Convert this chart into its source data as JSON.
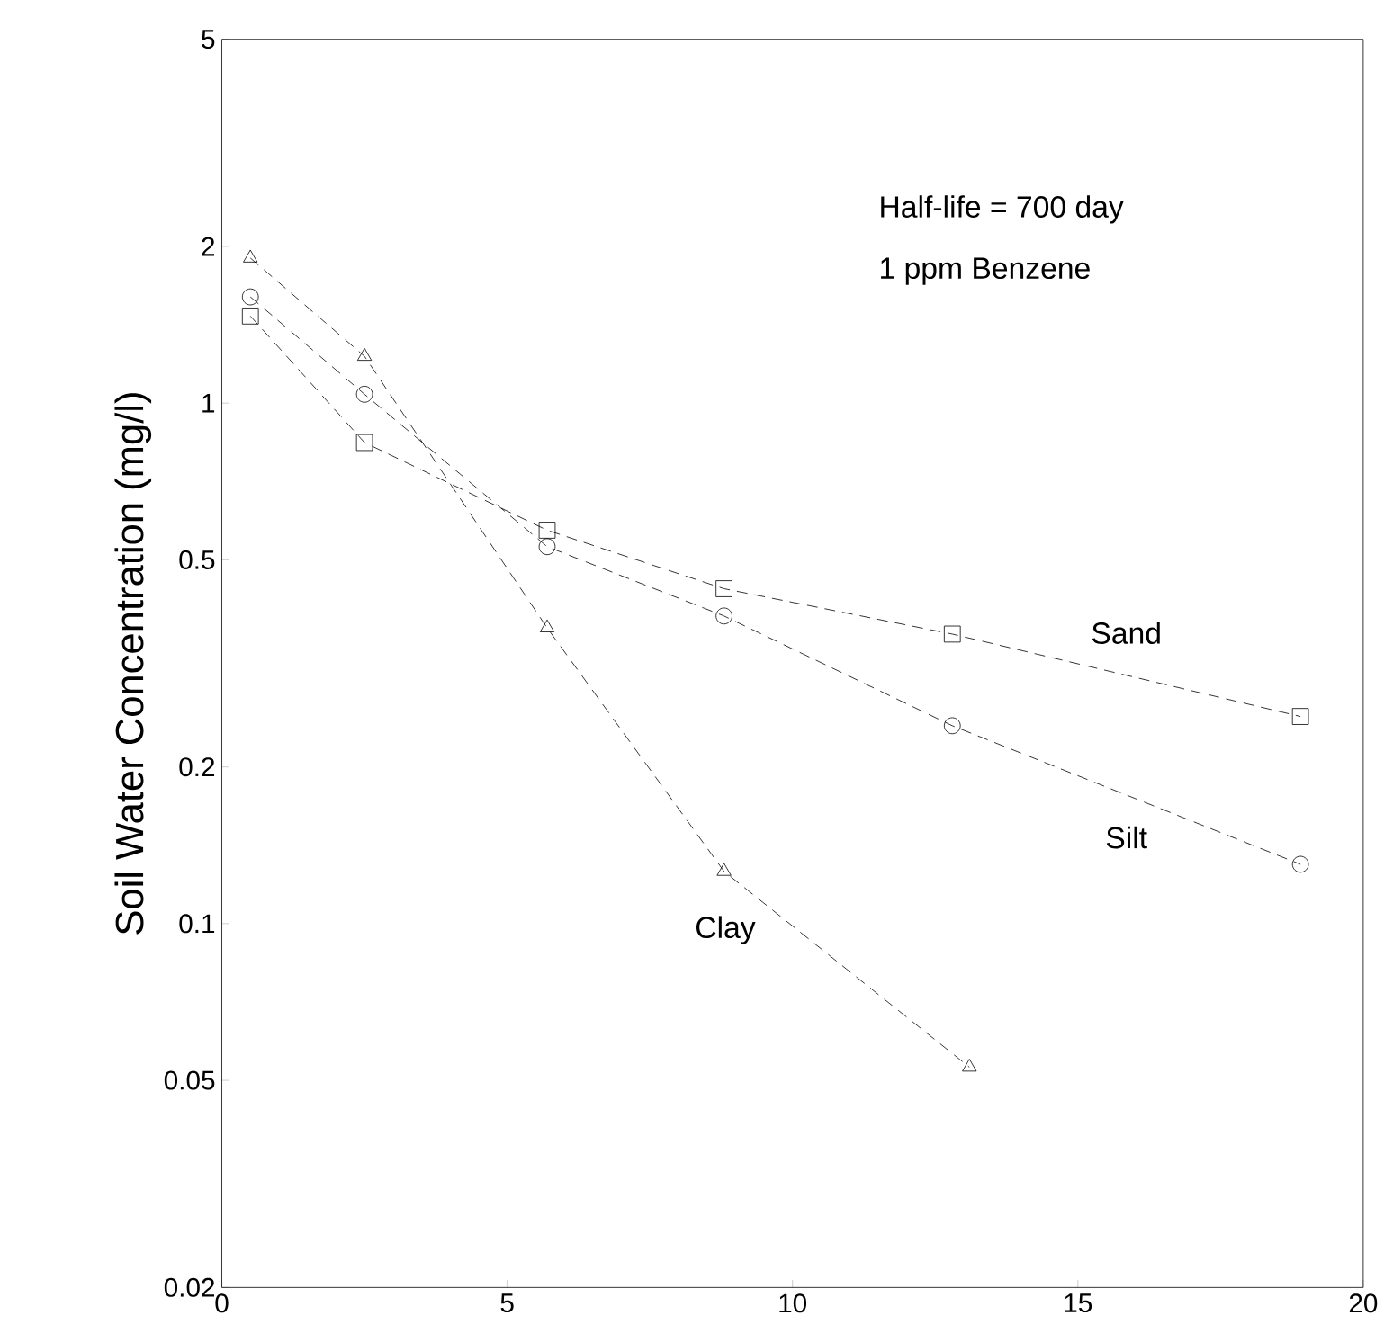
{
  "chart_data": {
    "type": "line",
    "ylabel": "Soil Water Concentration (mg/l)",
    "annotations": [
      "Half-life = 700 day",
      "1 ppm Benzene"
    ],
    "log": "y",
    "grid": false,
    "legend": false,
    "line_style": "dashed",
    "xlim": [
      0,
      20
    ],
    "xticks": [
      0,
      5,
      10,
      15,
      20
    ],
    "ylim": [
      0.02,
      5
    ],
    "yticks": [
      0.02,
      0.05,
      0.1,
      0.2,
      0.5,
      1,
      2,
      5
    ],
    "series": [
      {
        "name": "Sand",
        "color": "#000000",
        "marker": "square",
        "x": [
          0.5,
          2.5,
          5.7,
          8.8,
          12.8,
          18.9
        ],
        "values": [
          1.47,
          0.84,
          0.57,
          0.44,
          0.36,
          0.25
        ]
      },
      {
        "name": "Silt",
        "color": "#000000",
        "marker": "circle",
        "x": [
          0.5,
          2.5,
          5.7,
          8.8,
          12.8,
          18.9
        ],
        "values": [
          1.6,
          1.04,
          0.53,
          0.39,
          0.24,
          0.13
        ]
      },
      {
        "name": "Clay",
        "color": "#000000",
        "marker": "triangle",
        "x": [
          0.5,
          2.5,
          5.7,
          8.8,
          13.1
        ],
        "values": [
          1.9,
          1.23,
          0.37,
          0.126,
          0.053
        ]
      }
    ]
  }
}
